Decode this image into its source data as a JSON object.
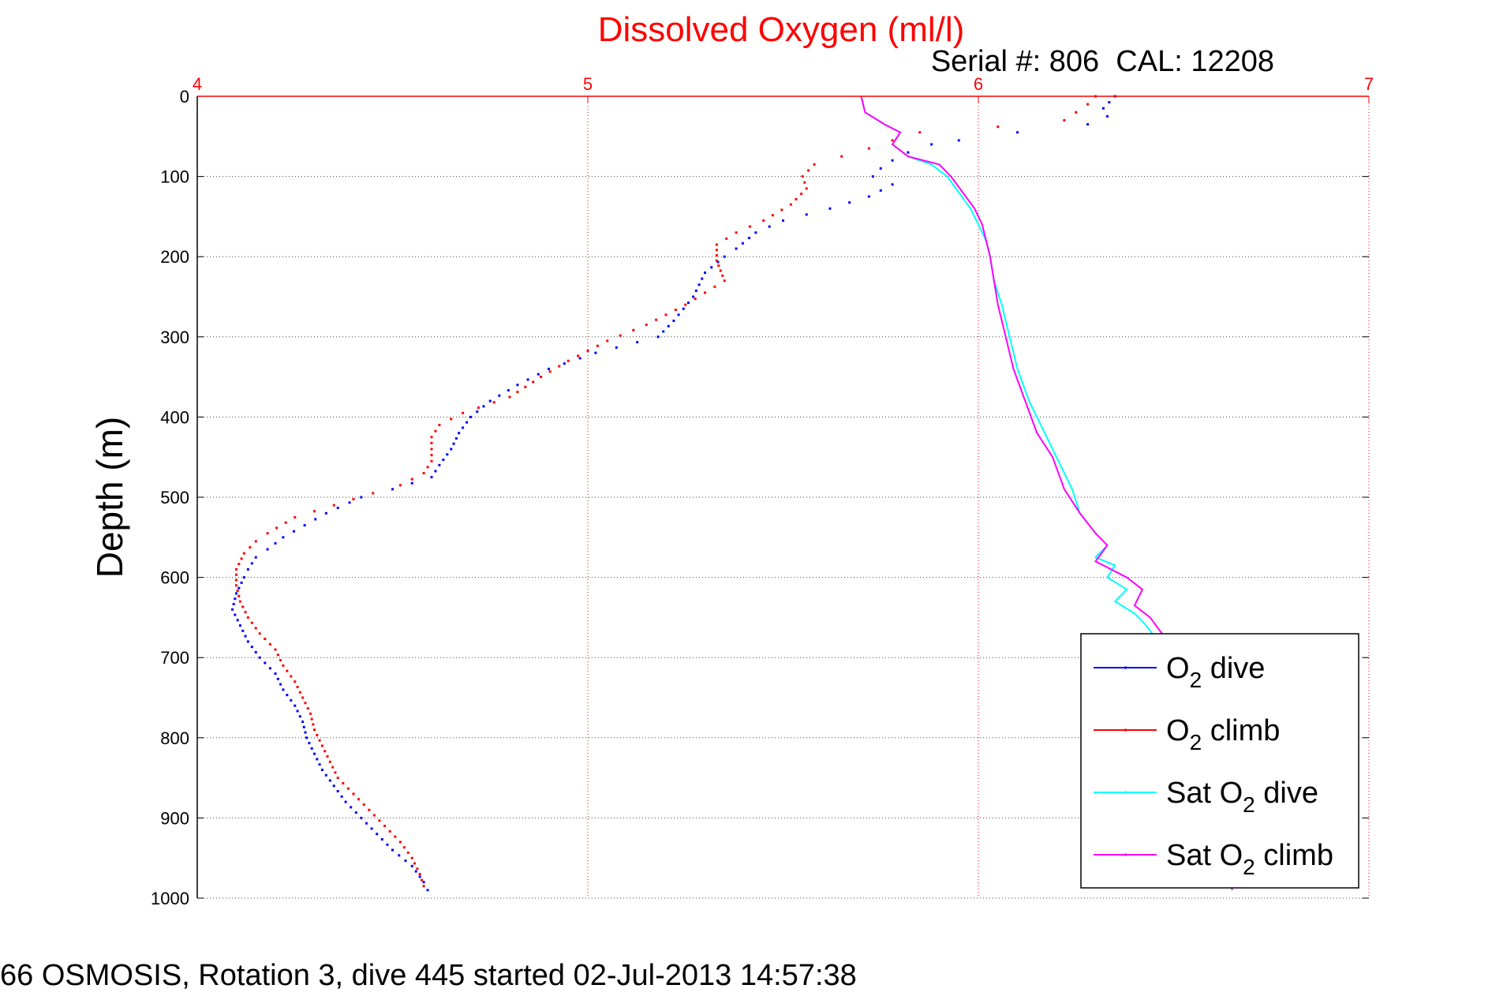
{
  "chart_data": {
    "type": "line",
    "title": "Dissolved Oxygen (ml/l)",
    "subtitle": "Serial #: 806  CAL: 12208",
    "xlabel": "",
    "ylabel": "Depth (m)",
    "xlim": [
      4,
      7
    ],
    "ylim": [
      0,
      1000
    ],
    "y_reversed": true,
    "x_axis_position": "top",
    "xticks": [
      "4",
      "5",
      "6",
      "7"
    ],
    "yticks": [
      "0",
      "100",
      "200",
      "300",
      "400",
      "500",
      "600",
      "700",
      "800",
      "900",
      "1000"
    ],
    "grid": true,
    "legend_position": "bottom-right",
    "series": [
      {
        "name": "O2 dive",
        "style": "dots",
        "color": "#0000ff",
        "points": [
          [
            6.35,
            0
          ],
          [
            6.32,
            15
          ],
          [
            6.33,
            25
          ],
          [
            6.28,
            35
          ],
          [
            6.1,
            45
          ],
          [
            5.95,
            55
          ],
          [
            5.88,
            60
          ],
          [
            5.82,
            70
          ],
          [
            5.78,
            80
          ],
          [
            5.75,
            90
          ],
          [
            5.73,
            100
          ],
          [
            5.78,
            110
          ],
          [
            5.72,
            125
          ],
          [
            5.62,
            140
          ],
          [
            5.5,
            155
          ],
          [
            5.43,
            170
          ],
          [
            5.38,
            190
          ],
          [
            5.35,
            200
          ],
          [
            5.3,
            220
          ],
          [
            5.27,
            250
          ],
          [
            5.22,
            280
          ],
          [
            5.18,
            300
          ],
          [
            5.02,
            320
          ],
          [
            4.9,
            340
          ],
          [
            4.82,
            360
          ],
          [
            4.75,
            380
          ],
          [
            4.7,
            400
          ],
          [
            4.67,
            420
          ],
          [
            4.65,
            440
          ],
          [
            4.62,
            460
          ],
          [
            4.6,
            475
          ],
          [
            4.5,
            490
          ],
          [
            4.42,
            500
          ],
          [
            4.33,
            520
          ],
          [
            4.22,
            550
          ],
          [
            4.18,
            565
          ],
          [
            4.15,
            575
          ],
          [
            4.13,
            590
          ],
          [
            4.12,
            600
          ],
          [
            4.1,
            620
          ],
          [
            4.09,
            640
          ],
          [
            4.11,
            660
          ],
          [
            4.13,
            680
          ],
          [
            4.16,
            700
          ],
          [
            4.2,
            720
          ],
          [
            4.22,
            740
          ],
          [
            4.25,
            760
          ],
          [
            4.27,
            780
          ],
          [
            4.28,
            800
          ],
          [
            4.3,
            820
          ],
          [
            4.32,
            840
          ],
          [
            4.35,
            860
          ],
          [
            4.38,
            880
          ],
          [
            4.42,
            900
          ],
          [
            4.46,
            920
          ],
          [
            4.5,
            940
          ],
          [
            4.55,
            960
          ],
          [
            4.58,
            980
          ],
          [
            4.59,
            990
          ]
        ]
      },
      {
        "name": "O2 climb",
        "style": "dots",
        "color": "#ff0000",
        "points": [
          [
            6.3,
            0
          ],
          [
            6.28,
            10
          ],
          [
            6.25,
            20
          ],
          [
            6.22,
            30
          ],
          [
            6.05,
            38
          ],
          [
            5.85,
            45
          ],
          [
            5.78,
            55
          ],
          [
            5.72,
            65
          ],
          [
            5.65,
            75
          ],
          [
            5.58,
            85
          ],
          [
            5.55,
            100
          ],
          [
            5.56,
            115
          ],
          [
            5.52,
            135
          ],
          [
            5.45,
            155
          ],
          [
            5.38,
            170
          ],
          [
            5.33,
            185
          ],
          [
            5.33,
            205
          ],
          [
            5.35,
            230
          ],
          [
            5.25,
            260
          ],
          [
            5.15,
            285
          ],
          [
            5.05,
            305
          ],
          [
            4.95,
            330
          ],
          [
            4.88,
            350
          ],
          [
            4.8,
            375
          ],
          [
            4.68,
            395
          ],
          [
            4.62,
            410
          ],
          [
            4.6,
            425
          ],
          [
            4.6,
            440
          ],
          [
            4.6,
            455
          ],
          [
            4.58,
            470
          ],
          [
            4.52,
            485
          ],
          [
            4.45,
            495
          ],
          [
            4.35,
            510
          ],
          [
            4.25,
            525
          ],
          [
            4.18,
            545
          ],
          [
            4.15,
            555
          ],
          [
            4.12,
            570
          ],
          [
            4.1,
            590
          ],
          [
            4.1,
            610
          ],
          [
            4.11,
            630
          ],
          [
            4.13,
            650
          ],
          [
            4.16,
            670
          ],
          [
            4.2,
            690
          ],
          [
            4.22,
            710
          ],
          [
            4.25,
            730
          ],
          [
            4.27,
            750
          ],
          [
            4.29,
            770
          ],
          [
            4.3,
            790
          ],
          [
            4.32,
            810
          ],
          [
            4.34,
            830
          ],
          [
            4.36,
            850
          ],
          [
            4.4,
            870
          ],
          [
            4.44,
            890
          ],
          [
            4.48,
            910
          ],
          [
            4.52,
            930
          ],
          [
            4.55,
            950
          ],
          [
            4.57,
            970
          ],
          [
            4.58,
            985
          ]
        ]
      },
      {
        "name": "Sat O2 dive",
        "style": "line",
        "color": "#00ffff",
        "points": [
          [
            5.7,
            0
          ],
          [
            5.71,
            20
          ],
          [
            5.76,
            35
          ],
          [
            5.8,
            45
          ],
          [
            5.78,
            60
          ],
          [
            5.82,
            75
          ],
          [
            5.88,
            85
          ],
          [
            5.92,
            100
          ],
          [
            5.95,
            120
          ],
          [
            5.98,
            140
          ],
          [
            6.0,
            160
          ],
          [
            6.02,
            180
          ],
          [
            6.03,
            200
          ],
          [
            6.04,
            230
          ],
          [
            6.06,
            260
          ],
          [
            6.08,
            300
          ],
          [
            6.1,
            340
          ],
          [
            6.13,
            380
          ],
          [
            6.17,
            420
          ],
          [
            6.2,
            450
          ],
          [
            6.24,
            490
          ],
          [
            6.26,
            520
          ],
          [
            6.3,
            545
          ],
          [
            6.33,
            560
          ],
          [
            6.3,
            575
          ],
          [
            6.35,
            585
          ],
          [
            6.33,
            600
          ],
          [
            6.38,
            615
          ],
          [
            6.35,
            630
          ],
          [
            6.4,
            645
          ],
          [
            6.43,
            660
          ],
          [
            6.46,
            680
          ],
          [
            6.5,
            700
          ],
          [
            6.54,
            750
          ],
          [
            6.57,
            800
          ],
          [
            6.59,
            850
          ],
          [
            6.61,
            900
          ],
          [
            6.63,
            950
          ],
          [
            6.65,
            990
          ]
        ]
      },
      {
        "name": "Sat O2 climb",
        "style": "line",
        "color": "#ff00ff",
        "points": [
          [
            5.7,
            0
          ],
          [
            5.71,
            20
          ],
          [
            5.76,
            35
          ],
          [
            5.8,
            45
          ],
          [
            5.78,
            60
          ],
          [
            5.82,
            75
          ],
          [
            5.9,
            85
          ],
          [
            5.93,
            100
          ],
          [
            5.96,
            120
          ],
          [
            5.99,
            140
          ],
          [
            6.01,
            160
          ],
          [
            6.02,
            180
          ],
          [
            6.03,
            200
          ],
          [
            6.04,
            230
          ],
          [
            6.05,
            260
          ],
          [
            6.07,
            300
          ],
          [
            6.09,
            340
          ],
          [
            6.12,
            380
          ],
          [
            6.15,
            420
          ],
          [
            6.19,
            450
          ],
          [
            6.22,
            490
          ],
          [
            6.26,
            520
          ],
          [
            6.3,
            545
          ],
          [
            6.33,
            560
          ],
          [
            6.3,
            580
          ],
          [
            6.38,
            600
          ],
          [
            6.42,
            615
          ],
          [
            6.4,
            635
          ],
          [
            6.44,
            650
          ],
          [
            6.47,
            670
          ],
          [
            6.5,
            700
          ],
          [
            6.54,
            750
          ],
          [
            6.57,
            800
          ],
          [
            6.59,
            850
          ],
          [
            6.61,
            900
          ],
          [
            6.63,
            950
          ],
          [
            6.65,
            990
          ]
        ]
      }
    ]
  },
  "legend": {
    "items": [
      {
        "prefix": "O",
        "sub": "2",
        "suffix": " dive",
        "color": "#0000ff"
      },
      {
        "prefix": "O",
        "sub": "2",
        "suffix": " climb",
        "color": "#ff0000"
      },
      {
        "prefix": "Sat O",
        "sub": "2",
        "suffix": " dive",
        "color": "#00ffff"
      },
      {
        "prefix": "Sat O",
        "sub": "2",
        "suffix": " climb",
        "color": "#ff00ff"
      }
    ]
  },
  "footer": {
    "text": "66 OSMOSIS, Rotation 3, dive 445 started 02-Jul-2013 14:57:38"
  },
  "colors": {
    "title": "#ff0000",
    "x_axis": "#ff0000",
    "grid": "#444444"
  }
}
